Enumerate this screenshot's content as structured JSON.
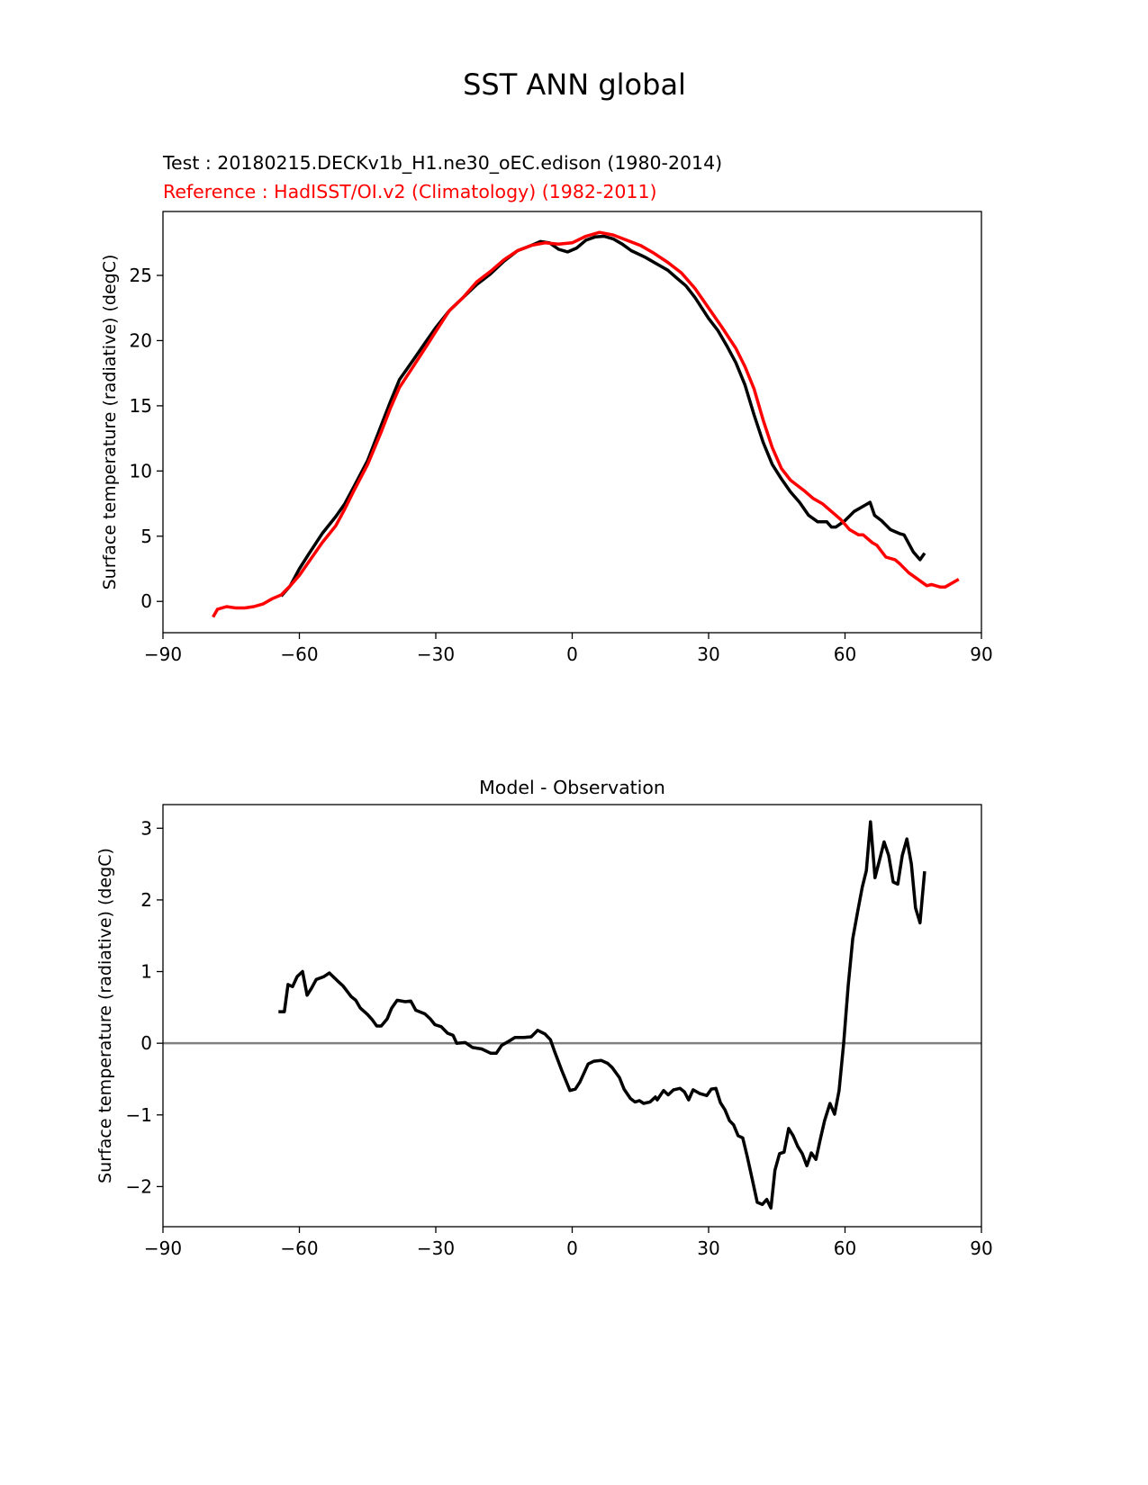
{
  "figure_title": "SST ANN global",
  "chart_data": [
    {
      "type": "line",
      "title_test": "Test : 20180215.DECKv1b_H1.ne30_oEC.edison (1980-2014)",
      "title_reference": "Reference : HadISST/OI.v2 (Climatology) (1982-2011)",
      "xlabel": "",
      "ylabel": "Surface temperature (radiative) (degC)",
      "xlim": [
        -90,
        90
      ],
      "ylim": [
        -2.4,
        29.9
      ],
      "xticks": [
        -90,
        -60,
        -30,
        0,
        30,
        60,
        90
      ],
      "xtick_labels": [
        "−90",
        "−60",
        "−30",
        "0",
        "30",
        "60",
        "90"
      ],
      "yticks": [
        0,
        5,
        10,
        15,
        20,
        25
      ],
      "ytick_labels": [
        "0",
        "5",
        "10",
        "15",
        "20",
        "25"
      ],
      "grid": false,
      "series": [
        {
          "color": "#000000",
          "x": [
            -64,
            -62,
            -60,
            -58,
            -55,
            -52,
            -50,
            -48,
            -45,
            -42,
            -40,
            -38,
            -35,
            -32,
            -30,
            -27,
            -24,
            -21,
            -18,
            -15,
            -12,
            -9,
            -7,
            -5,
            -3,
            -1,
            1,
            3,
            5,
            7,
            9,
            11,
            13,
            16,
            19,
            21,
            23,
            25,
            27,
            30,
            32,
            34,
            36,
            38,
            40,
            42,
            44,
            46,
            48,
            50,
            52,
            54,
            56,
            57,
            58,
            60,
            62,
            64,
            65.5,
            66.5,
            68,
            70,
            72,
            73,
            75,
            76.5,
            77.5
          ],
          "y": [
            0.4,
            1.2,
            2.5,
            3.6,
            5.2,
            6.5,
            7.5,
            8.8,
            10.8,
            13.5,
            15.3,
            17.0,
            18.5,
            20.0,
            21.0,
            22.3,
            23.3,
            24.3,
            25.1,
            26.1,
            26.9,
            27.3,
            27.6,
            27.5,
            27.0,
            26.8,
            27.1,
            27.7,
            27.95,
            28.0,
            27.8,
            27.4,
            26.9,
            26.4,
            25.8,
            25.4,
            24.8,
            24.2,
            23.3,
            21.7,
            20.8,
            19.6,
            18.3,
            16.6,
            14.3,
            12.2,
            10.5,
            9.4,
            8.4,
            7.6,
            6.6,
            6.1,
            6.1,
            5.7,
            5.7,
            6.2,
            6.9,
            7.3,
            7.6,
            6.6,
            6.2,
            5.5,
            5.2,
            5.1,
            3.8,
            3.2,
            3.7
          ]
        },
        {
          "color": "#ff0000",
          "x": [
            -79,
            -78,
            -76,
            -74,
            -72,
            -70,
            -68,
            -66,
            -64,
            -62,
            -60,
            -58,
            -55,
            -52,
            -50,
            -48,
            -45,
            -42,
            -40,
            -38,
            -35,
            -32,
            -30,
            -27,
            -24,
            -21,
            -18,
            -15,
            -12,
            -9,
            -6,
            -3,
            0,
            3,
            6,
            9,
            12,
            15,
            18,
            21,
            24,
            27,
            30,
            33,
            36,
            38,
            40,
            42,
            44,
            46,
            48,
            51,
            53,
            55,
            57,
            59,
            61,
            63,
            64,
            66,
            67,
            69,
            71,
            72,
            74,
            76,
            78,
            79,
            81,
            82,
            85
          ],
          "y": [
            -1.2,
            -0.6,
            -0.4,
            -0.5,
            -0.5,
            -0.4,
            -0.2,
            0.2,
            0.5,
            1.2,
            2.0,
            3.0,
            4.5,
            5.8,
            7.1,
            8.5,
            10.5,
            13.0,
            14.8,
            16.4,
            18.0,
            19.6,
            20.7,
            22.3,
            23.3,
            24.5,
            25.3,
            26.2,
            26.9,
            27.3,
            27.5,
            27.4,
            27.5,
            28.0,
            28.3,
            28.1,
            27.7,
            27.3,
            26.7,
            26.0,
            25.2,
            24.0,
            22.5,
            21.0,
            19.4,
            18.0,
            16.3,
            13.9,
            11.8,
            10.2,
            9.3,
            8.5,
            7.9,
            7.5,
            6.9,
            6.3,
            5.5,
            5.1,
            5.1,
            4.5,
            4.3,
            3.4,
            3.2,
            2.9,
            2.2,
            1.7,
            1.2,
            1.3,
            1.1,
            1.1,
            1.7
          ]
        }
      ]
    },
    {
      "type": "line",
      "title": "Model - Observation",
      "xlabel": "",
      "ylabel": "Surface temperature (radiative) (degC)",
      "xlim": [
        -90,
        90
      ],
      "ylim": [
        -2.56,
        3.33
      ],
      "xticks": [
        -90,
        -60,
        -30,
        0,
        30,
        60,
        90
      ],
      "xtick_labels": [
        "−90",
        "−60",
        "−30",
        "0",
        "30",
        "60",
        "90"
      ],
      "yticks": [
        -2,
        -1,
        0,
        1,
        2,
        3
      ],
      "ytick_labels": [
        "−2",
        "−1",
        "0",
        "1",
        "2",
        "3"
      ],
      "grid": false,
      "zero_line_color": "#808080",
      "series": [
        {
          "color": "#000000",
          "x": [
            -64.6,
            -63.3,
            -62.5,
            -61.5,
            -60.5,
            -59.3,
            -58.3,
            -57.3,
            -56.3,
            -54.6,
            -53.4,
            -51.6,
            -50.4,
            -48.6,
            -47.6,
            -46.6,
            -45,
            -44,
            -43,
            -42,
            -40.7,
            -39.7,
            -38.5,
            -36.7,
            -35.5,
            -34.4,
            -32.4,
            -31.2,
            -30.2,
            -28.8,
            -27.4,
            -26.2,
            -25.4,
            -23.5,
            -21.9,
            -19.9,
            -17.9,
            -16.7,
            -15.5,
            -13.9,
            -12.6,
            -10.6,
            -9,
            -7.6,
            -6,
            -4.8,
            -3.9,
            -2.3,
            -0.5,
            0.7,
            1.7,
            3.5,
            4.8,
            6.4,
            7.8,
            8.8,
            10.4,
            11.4,
            12.8,
            13.8,
            14.8,
            15.7,
            17.1,
            18.3,
            18.7,
            20.1,
            21.1,
            22.3,
            23.7,
            24.7,
            25.6,
            26.6,
            28,
            29.6,
            30.6,
            31.6,
            32.6,
            33.6,
            34.6,
            35.5,
            36.5,
            37.5,
            38.5,
            39.7,
            40.7,
            41.8,
            42.8,
            43.7,
            44.6,
            45.6,
            46.6,
            47.6,
            48.6,
            49.6,
            50.6,
            51.6,
            52.6,
            53.6,
            54.5,
            55.5,
            56.7,
            57.7,
            58.7,
            59.7,
            60.7,
            61.7,
            62.8,
            63.8,
            64.7,
            65.6,
            66.6,
            67.6,
            68.6,
            69.6,
            70.6,
            71.6,
            72.6,
            73.6,
            74.6,
            75.5,
            76.5,
            77.5
          ],
          "y": [
            0.44,
            0.44,
            0.82,
            0.79,
            0.93,
            1.0,
            0.67,
            0.77,
            0.89,
            0.93,
            0.98,
            0.87,
            0.8,
            0.65,
            0.6,
            0.49,
            0.4,
            0.33,
            0.24,
            0.24,
            0.34,
            0.49,
            0.6,
            0.58,
            0.59,
            0.46,
            0.41,
            0.34,
            0.26,
            0.23,
            0.14,
            0.11,
            0.0,
            0.01,
            -0.06,
            -0.08,
            -0.14,
            -0.14,
            -0.03,
            0.03,
            0.08,
            0.08,
            0.09,
            0.18,
            0.13,
            0.05,
            -0.11,
            -0.38,
            -0.66,
            -0.64,
            -0.54,
            -0.29,
            -0.25,
            -0.24,
            -0.28,
            -0.34,
            -0.48,
            -0.64,
            -0.77,
            -0.82,
            -0.8,
            -0.84,
            -0.82,
            -0.75,
            -0.79,
            -0.66,
            -0.72,
            -0.65,
            -0.63,
            -0.68,
            -0.79,
            -0.65,
            -0.7,
            -0.73,
            -0.64,
            -0.63,
            -0.83,
            -0.93,
            -1.08,
            -1.14,
            -1.29,
            -1.32,
            -1.58,
            -1.93,
            -2.22,
            -2.25,
            -2.18,
            -2.3,
            -1.77,
            -1.54,
            -1.52,
            -1.19,
            -1.29,
            -1.44,
            -1.54,
            -1.71,
            -1.53,
            -1.62,
            -1.36,
            -1.08,
            -0.84,
            -0.99,
            -0.66,
            0.0,
            0.8,
            1.46,
            1.84,
            2.18,
            2.41,
            3.09,
            2.31,
            2.56,
            2.81,
            2.62,
            2.25,
            2.22,
            2.62,
            2.85,
            2.5,
            1.89,
            1.68,
            2.4
          ]
        }
      ]
    }
  ]
}
